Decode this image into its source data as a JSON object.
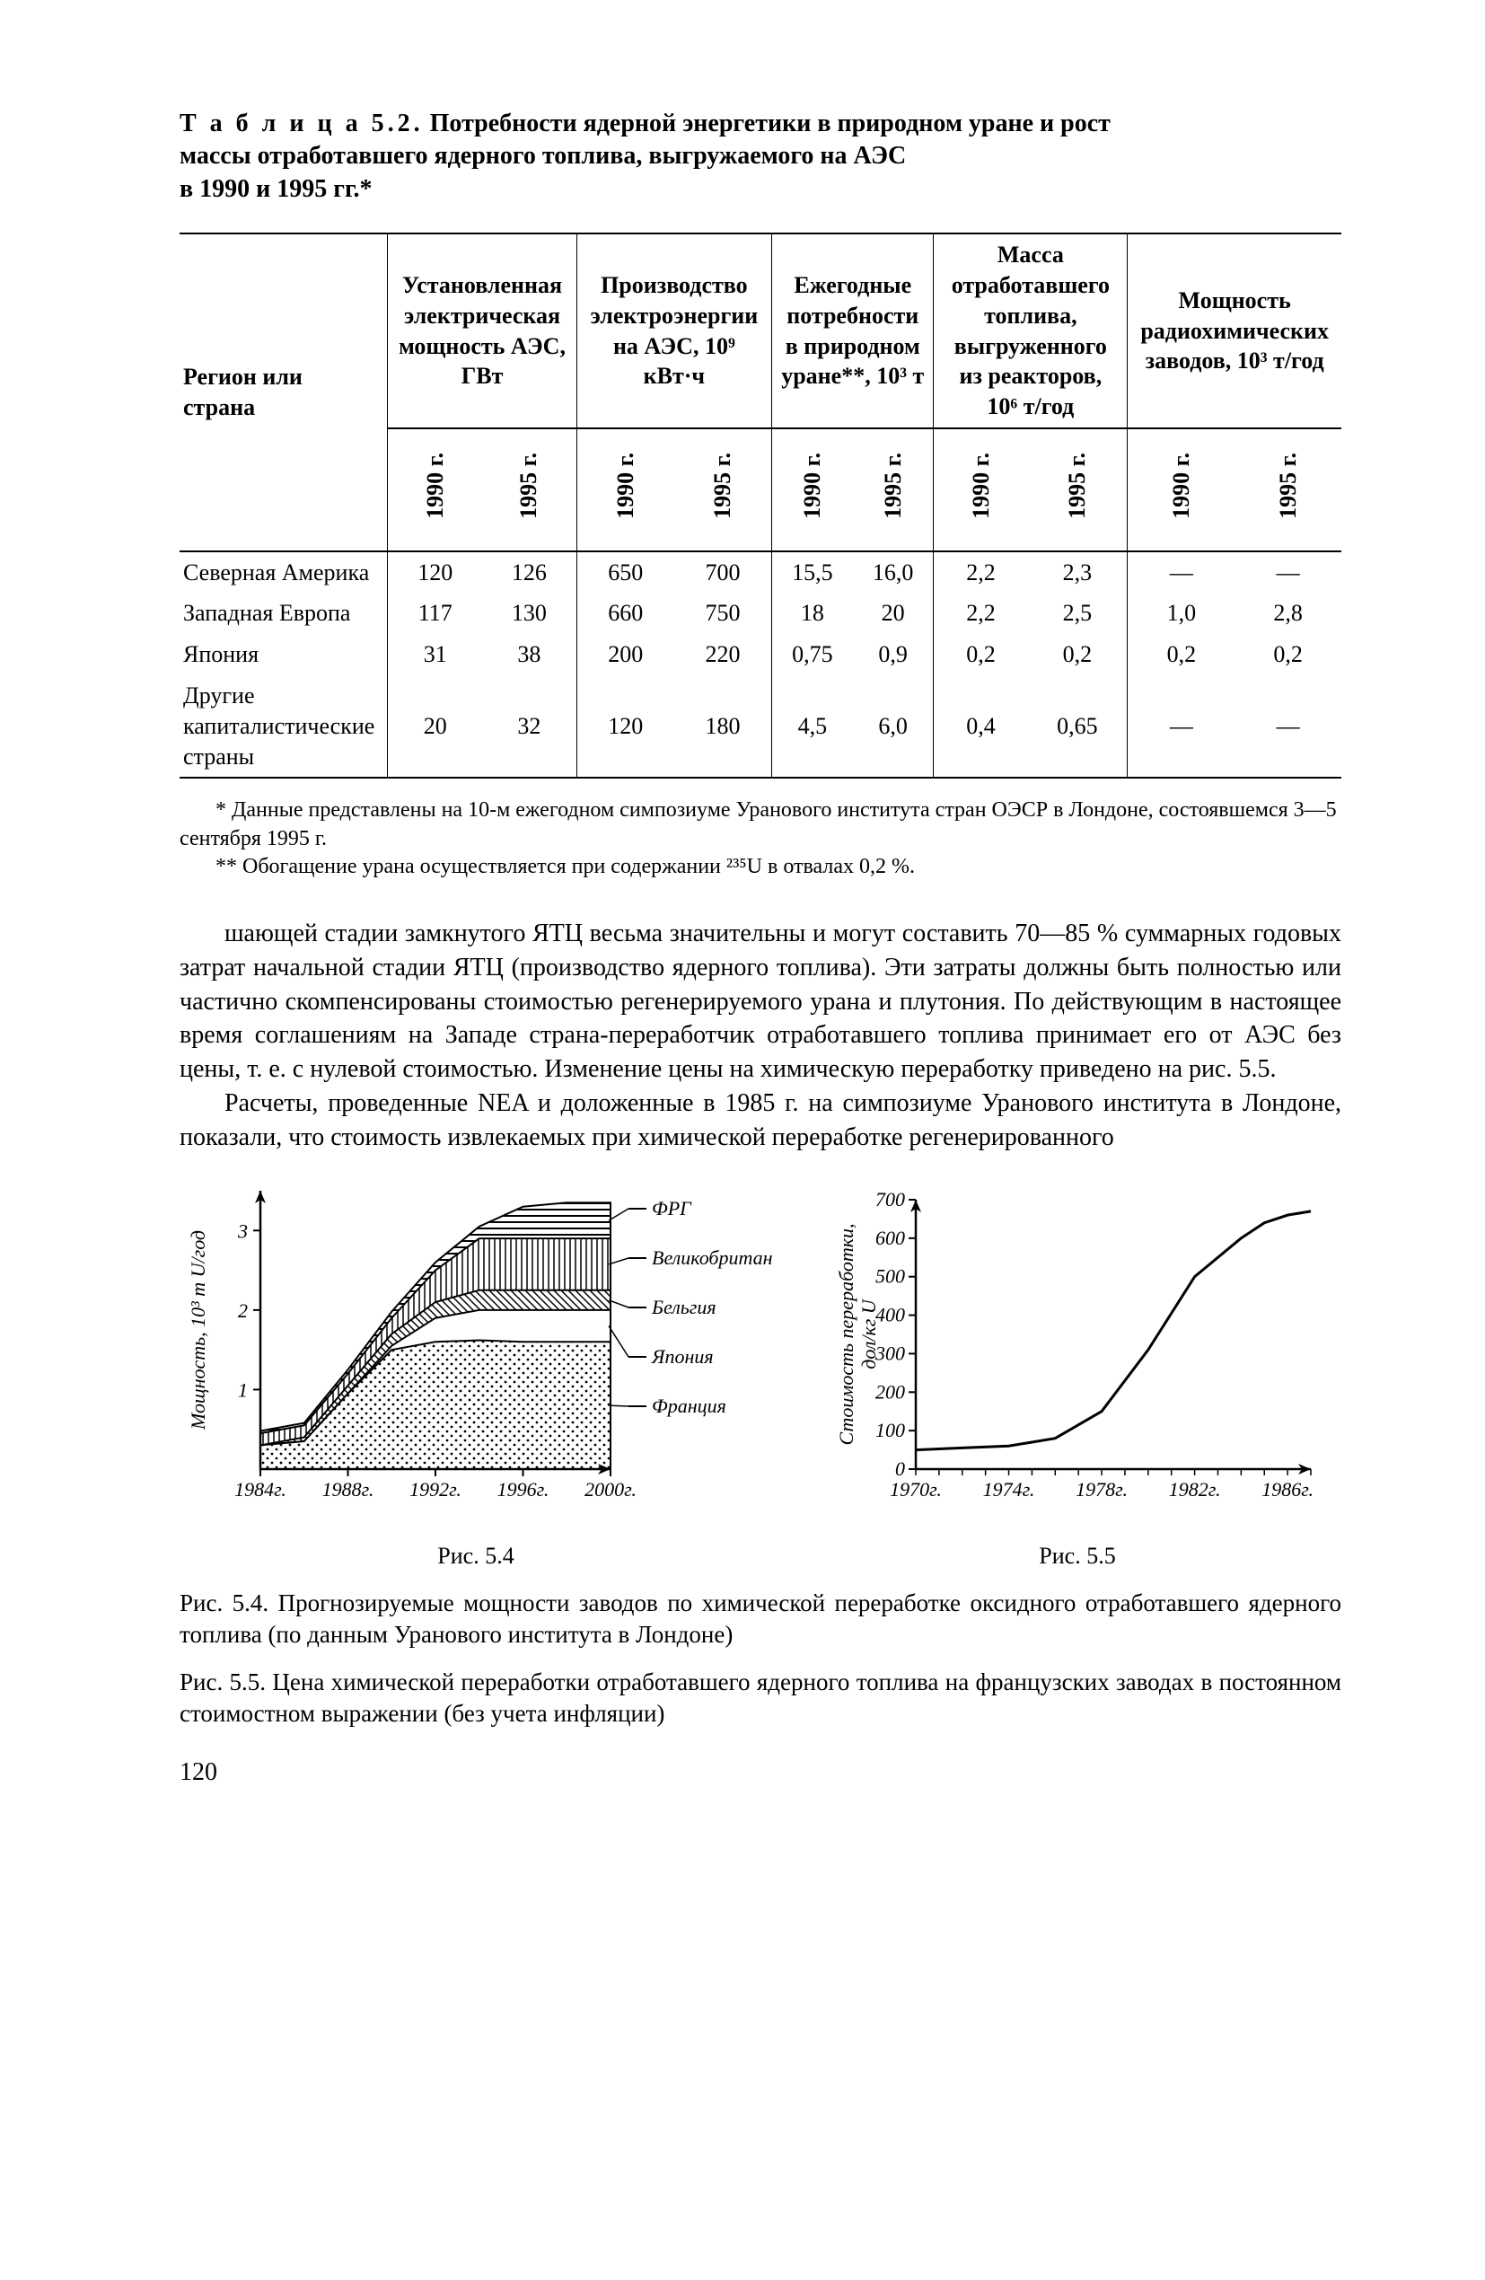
{
  "table": {
    "label": "Т а б л и ц а 5.2.",
    "title_lines": [
      "Потребности ядерной энергетики в природном уране и рост",
      "массы отработавшего ядерного топлива, выгружаемого на АЭС",
      "в 1990 и 1995 гг.*"
    ],
    "region_header": "Регион или страна",
    "col_groups": [
      "Установленная электрическая мощность АЭС, ГВт",
      "Производство электроэнергии на АЭС, 10⁹ кВт·ч",
      "Ежегодные потребности в природном уране**, 10³ т",
      "Масса отработавшего топлива, выгруженного из реакторов, 10⁶ т/год",
      "Мощность радиохимических заводов, 10³ т/год"
    ],
    "years": [
      "1990 г.",
      "1995 г."
    ],
    "rows": [
      {
        "region": "Северная Америка",
        "v": [
          "120",
          "126",
          "650",
          "700",
          "15,5",
          "16,0",
          "2,2",
          "2,3",
          "—",
          "—"
        ]
      },
      {
        "region": "Западная Европа",
        "v": [
          "117",
          "130",
          "660",
          "750",
          "18",
          "20",
          "2,2",
          "2,5",
          "1,0",
          "2,8"
        ]
      },
      {
        "region": "Япония",
        "v": [
          "31",
          "38",
          "200",
          "220",
          "0,75",
          "0,9",
          "0,2",
          "0,2",
          "0,2",
          "0,2"
        ]
      },
      {
        "region": "Другие капиталистические страны",
        "v": [
          "20",
          "32",
          "120",
          "180",
          "4,5",
          "6,0",
          "0,4",
          "0,65",
          "—",
          "—"
        ]
      }
    ],
    "footnote1": "* Данные представлены на 10-м ежегодном симпозиуме Уранового института стран ОЭСР в Лондоне, состоявшемся 3—5 сентября 1995 г.",
    "footnote2": "** Обогащение урана осуществляется при содержании ²³⁵U в отвалах 0,2 %."
  },
  "paragraphs": [
    "шающей стадии замкнутого ЯТЦ весьма значительны и могут составить 70—85 % суммарных годовых затрат начальной стадии ЯТЦ (производство ядерного топлива). Эти затраты должны быть полностью или частично скомпенсированы стоимостью регенерируемого урана и плутония. По действующим в настоящее время соглашениям на Западе страна-переработчик отработавшего топлива принимает его от АЭС без цены, т. е. с нулевой стоимостью. Изменение цены на химическую переработку приведено на рис. 5.5.",
    "Расчеты, проведенные NEA и доложенные в 1985 г. на симпозиуме Уранового института в Лондоне, показали, что стоимость извлекаемых при химической переработке регенерированного"
  ],
  "fig54": {
    "type": "stacked-area",
    "caption": "Рис. 5.4",
    "ylabel": "Мощность, 10³ т U/год",
    "ylim": [
      0,
      3.5
    ],
    "yticks": [
      1,
      2,
      3
    ],
    "xlabels": [
      "1984г.",
      "1988г.",
      "1992г.",
      "1996г.",
      "2000г."
    ],
    "xvals": [
      1984,
      1988,
      1992,
      1996,
      2000
    ],
    "legend": [
      "ФРГ",
      "Великобритания",
      "Бельгия",
      "Япония",
      "Франция"
    ],
    "series_top": {
      "france": [
        0.3,
        0.35,
        0.95,
        1.5,
        1.6,
        1.62,
        1.6,
        1.6,
        1.6
      ],
      "japan": [
        0.3,
        0.35,
        0.95,
        1.55,
        1.9,
        2.0,
        2.0,
        2.0,
        2.0
      ],
      "belgium": [
        0.3,
        0.4,
        1.05,
        1.7,
        2.1,
        2.25,
        2.25,
        2.25,
        2.25
      ],
      "uk": [
        0.45,
        0.55,
        1.2,
        1.9,
        2.5,
        2.9,
        2.9,
        2.9,
        2.9
      ],
      "frg": [
        0.48,
        0.58,
        1.25,
        1.98,
        2.6,
        3.05,
        3.3,
        3.35,
        3.35
      ]
    },
    "xsample": [
      1984,
      1986,
      1988,
      1990,
      1992,
      1994,
      1996,
      1998,
      2000
    ],
    "colors": {
      "axis": "#000",
      "bg": "#fff"
    },
    "font_size": 22
  },
  "fig55": {
    "type": "line",
    "caption": "Рис. 5.5",
    "ylabel": "Стоимость переработки, дол/кг U",
    "ylim": [
      0,
      700
    ],
    "yticks": [
      0,
      100,
      200,
      300,
      400,
      500,
      600,
      700
    ],
    "xlabels": [
      "1970г.",
      "1974г.",
      "1978г.",
      "1982г.",
      "1986г."
    ],
    "xlim": [
      1970,
      1987
    ],
    "points": [
      [
        1970,
        50
      ],
      [
        1972,
        55
      ],
      [
        1974,
        60
      ],
      [
        1976,
        80
      ],
      [
        1978,
        150
      ],
      [
        1980,
        310
      ],
      [
        1982,
        500
      ],
      [
        1984,
        600
      ],
      [
        1985,
        640
      ],
      [
        1986,
        660
      ],
      [
        1987,
        670
      ]
    ],
    "colors": {
      "stroke": "#000",
      "axis": "#000"
    },
    "line_width": 3,
    "font_size": 22
  },
  "fig_descriptions": [
    "Рис. 5.4. Прогнозируемые мощности заводов по химической переработке оксидного отработавшего ядерного топлива (по данным Уранового института в Лондоне)",
    "Рис. 5.5. Цена химической переработки отработавшего ядерного топлива на французских заводах в постоянном стоимостном выражении (без учета инфляции)"
  ],
  "page_number": "120"
}
